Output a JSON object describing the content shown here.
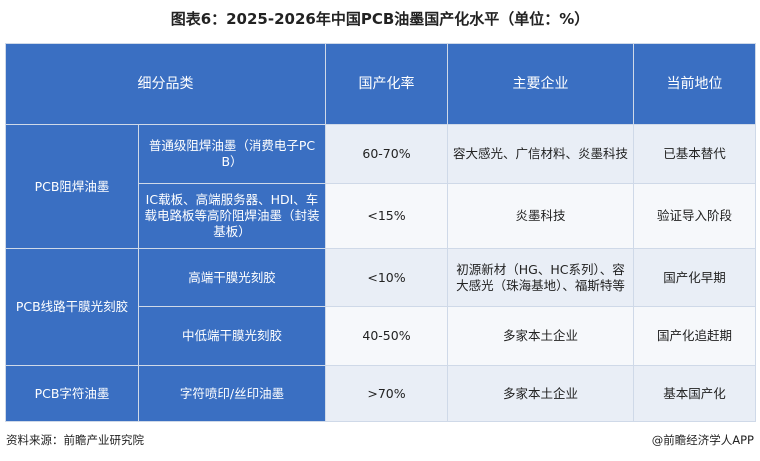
{
  "title": "图表6：2025-2026年中国PCB油墨国产化水平（单位：%）",
  "headers": [
    "细分品类",
    "国产化率",
    "主要企业",
    "当前地位"
  ],
  "groups": [
    {
      "name": "PCB阻焊油墨",
      "rows": [
        {
          "sub": "普通级阻焊油墨（消费电子PCB）",
          "rate": "60-70%",
          "company": "容大感光、广信材料、炎墨科技",
          "status": "已基本替代"
        },
        {
          "sub": "IC载板、高端服务器、HDI、车载电路板等高阶阻焊油墨（封装基板）",
          "rate": "<15%",
          "company": "炎墨科技",
          "status": "验证导入阶段"
        }
      ]
    },
    {
      "name": "PCB线路干膜光刻胶",
      "rows": [
        {
          "sub": "高端干膜光刻胶",
          "rate": "<10%",
          "company": "初源新材（HG、HC系列）、容大感光（珠海基地）、福斯特等",
          "status": "国产化早期"
        },
        {
          "sub": "中低端干膜光刻胶",
          "rate": "40-50%",
          "company": "多家本土企业",
          "status": "国产化追赶期"
        }
      ]
    },
    {
      "name": "PCB字符油墨",
      "rows": [
        {
          "sub": "字符喷印/丝印油墨",
          "rate": ">70%",
          "company": "多家本土企业",
          "status": "基本国产化"
        }
      ]
    }
  ],
  "footer": {
    "source": "资料来源：前瞻产业研究院",
    "credit": "@前瞻经济学人APP"
  }
}
